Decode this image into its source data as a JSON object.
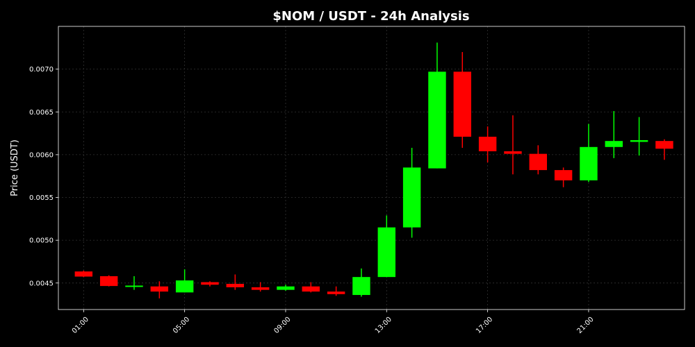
{
  "chart_data": {
    "type": "candlestick",
    "title": "$NOM / USDT - 24h Analysis",
    "xlabel": "",
    "ylabel": "Price (USDT)",
    "ylim": [
      0.00419,
      0.0075
    ],
    "y_ticks": [
      0.0045,
      0.005,
      0.0055,
      0.006,
      0.0065,
      0.007
    ],
    "y_tick_labels": [
      "0.0045",
      "0.0050",
      "0.0055",
      "0.0060",
      "0.0065",
      "0.0070"
    ],
    "x_ticks": [
      1,
      5,
      9,
      13,
      17,
      21
    ],
    "x_tick_labels": [
      "01:00",
      "05:00",
      "09:00",
      "13:00",
      "17:00",
      "21:00"
    ],
    "xlim": [
      0,
      24.8
    ],
    "grid": true,
    "background": "#000000",
    "up_color": "#00ff00",
    "down_color": "#ff0000",
    "candles": [
      {
        "hour": 1,
        "open": 0.004635,
        "high": 0.004645,
        "low": 0.00457,
        "close": 0.004575
      },
      {
        "hour": 2,
        "open": 0.00458,
        "high": 0.00459,
        "low": 0.00446,
        "close": 0.004465
      },
      {
        "hour": 3,
        "open": 0.00446,
        "high": 0.00458,
        "low": 0.00442,
        "close": 0.00447
      },
      {
        "hour": 4,
        "open": 0.00446,
        "high": 0.00452,
        "low": 0.00432,
        "close": 0.0044
      },
      {
        "hour": 5,
        "open": 0.00439,
        "high": 0.00466,
        "low": 0.00439,
        "close": 0.00453
      },
      {
        "hour": 6,
        "open": 0.00451,
        "high": 0.00452,
        "low": 0.00446,
        "close": 0.00448
      },
      {
        "hour": 7,
        "open": 0.00449,
        "high": 0.0046,
        "low": 0.00442,
        "close": 0.00445
      },
      {
        "hour": 8,
        "open": 0.00445,
        "high": 0.00451,
        "low": 0.0044,
        "close": 0.00442
      },
      {
        "hour": 9,
        "open": 0.00442,
        "high": 0.00448,
        "low": 0.00441,
        "close": 0.00446
      },
      {
        "hour": 10,
        "open": 0.00446,
        "high": 0.00451,
        "low": 0.00439,
        "close": 0.0044
      },
      {
        "hour": 11,
        "open": 0.0044,
        "high": 0.00446,
        "low": 0.00435,
        "close": 0.00437
      },
      {
        "hour": 12,
        "open": 0.00436,
        "high": 0.00467,
        "low": 0.00434,
        "close": 0.00457
      },
      {
        "hour": 13,
        "open": 0.00457,
        "high": 0.00529,
        "low": 0.00457,
        "close": 0.00515
      },
      {
        "hour": 14,
        "open": 0.00515,
        "high": 0.00608,
        "low": 0.00503,
        "close": 0.00585
      },
      {
        "hour": 15,
        "open": 0.00584,
        "high": 0.00731,
        "low": 0.00584,
        "close": 0.00697
      },
      {
        "hour": 16,
        "open": 0.00697,
        "high": 0.0072,
        "low": 0.00608,
        "close": 0.00621
      },
      {
        "hour": 17,
        "open": 0.00621,
        "high": 0.00633,
        "low": 0.00591,
        "close": 0.00604
      },
      {
        "hour": 18,
        "open": 0.00604,
        "high": 0.00646,
        "low": 0.00577,
        "close": 0.00601
      },
      {
        "hour": 19,
        "open": 0.00601,
        "high": 0.00611,
        "low": 0.00577,
        "close": 0.00582
      },
      {
        "hour": 20,
        "open": 0.00582,
        "high": 0.00585,
        "low": 0.00562,
        "close": 0.0057
      },
      {
        "hour": 21,
        "open": 0.0057,
        "high": 0.00636,
        "low": 0.00568,
        "close": 0.00609
      },
      {
        "hour": 22,
        "open": 0.00609,
        "high": 0.00651,
        "low": 0.00596,
        "close": 0.00616
      },
      {
        "hour": 23,
        "open": 0.00615,
        "high": 0.00644,
        "low": 0.00599,
        "close": 0.00617
      },
      {
        "hour": 24,
        "open": 0.00616,
        "high": 0.00618,
        "low": 0.00594,
        "close": 0.00607
      }
    ]
  }
}
